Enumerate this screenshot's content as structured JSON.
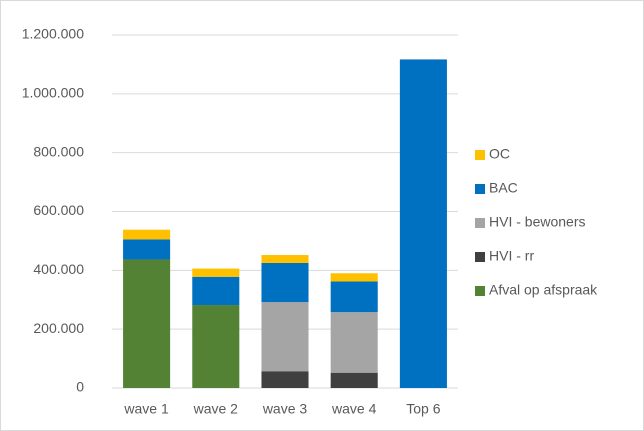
{
  "chart_data": {
    "type": "stacked_bar",
    "categories": [
      "wave 1",
      "wave 2",
      "wave 3",
      "wave 4",
      "Top 6"
    ],
    "series": [
      {
        "name": "Afval op afspraak",
        "color": "#548235",
        "values": [
          437000,
          282000,
          0,
          0,
          0
        ]
      },
      {
        "name": "HVI - rr",
        "color": "#404040",
        "values": [
          0,
          0,
          57000,
          52000,
          0
        ]
      },
      {
        "name": "HVI - bewoners",
        "color": "#a5a5a5",
        "values": [
          0,
          0,
          235000,
          206000,
          0
        ]
      },
      {
        "name": "BAC",
        "color": "#0070c0",
        "values": [
          68000,
          96000,
          133000,
          104000,
          1117000
        ]
      },
      {
        "name": "OC",
        "color": "#ffc000",
        "values": [
          33000,
          28000,
          27000,
          28000,
          0
        ]
      }
    ],
    "ylim": [
      0,
      1200000
    ],
    "yticks": [
      0,
      {
        "value": 200000,
        "label": "200.000"
      },
      {
        "value": 400000,
        "label": "400.000"
      },
      {
        "value": 600000,
        "label": "600.000"
      },
      {
        "value": 800000,
        "label": "800.000"
      },
      {
        "value": 1000000,
        "label": "1.000.000"
      },
      {
        "value": 1200000,
        "label": "1.200.000"
      }
    ],
    "grid": true,
    "legend": "right"
  }
}
